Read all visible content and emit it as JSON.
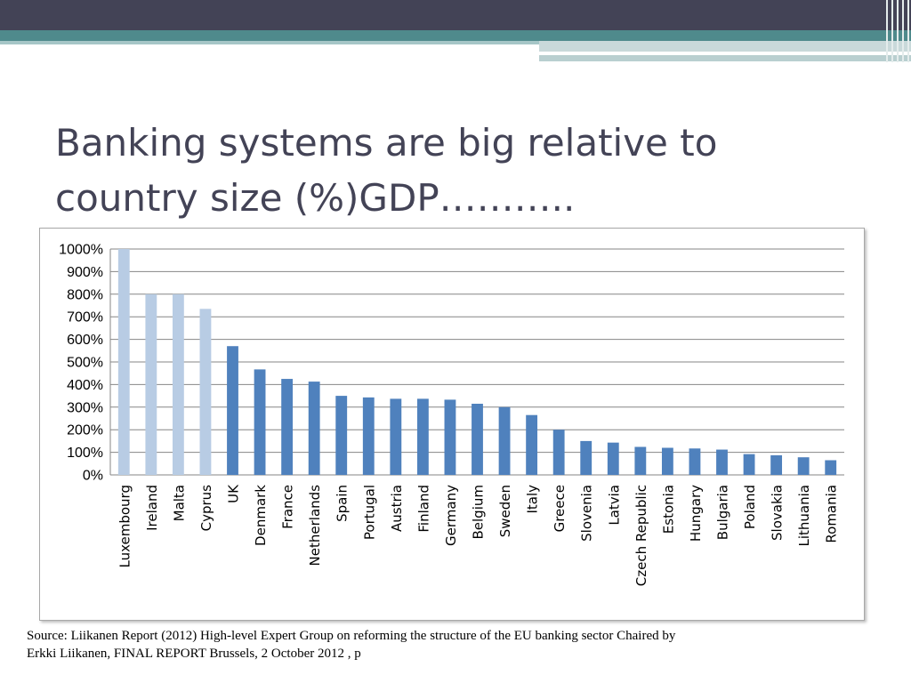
{
  "slide": {
    "title_line1": "Banking systems are big relative to",
    "title_line2": "country size (%)GDP………..",
    "source_line1": "Source: Liikanen Report (2012)  High-level Expert Group on reforming the structure of the EU banking sector Chaired by",
    "source_line2": "Erkki Liikanen, FINAL REPORT Brussels, 2 October 2012 , p"
  },
  "colors": {
    "header_dark": "#434356",
    "header_teal": "#4f8a8c",
    "bar_highlight": "#b8cce4",
    "bar_main": "#4f81bd",
    "grid": "#868686"
  },
  "chart_data": {
    "type": "bar",
    "title": "",
    "xlabel": "",
    "ylabel": "",
    "ylim": [
      0,
      1000
    ],
    "yticks": [
      "0%",
      "100%",
      "200%",
      "300%",
      "400%",
      "500%",
      "600%",
      "700%",
      "800%",
      "900%",
      "1000%"
    ],
    "grid": true,
    "categories": [
      "Luxembourg",
      "Ireland",
      "Malta",
      "Cyprus",
      "UK",
      "Denmark",
      "France",
      "Netherlands",
      "Spain",
      "Portugal",
      "Austria",
      "Finland",
      "Germany",
      "Belgium",
      "Sweden",
      "Italy",
      "Greece",
      "Slovenia",
      "Latvia",
      "Czech Republic",
      "Estonia",
      "Hungary",
      "Bulgaria",
      "Poland",
      "Slovakia",
      "Lithuania",
      "Romania"
    ],
    "values": [
      1000,
      800,
      800,
      735,
      570,
      467,
      425,
      413,
      350,
      343,
      337,
      337,
      333,
      315,
      300,
      265,
      200,
      150,
      143,
      124,
      120,
      117,
      112,
      92,
      87,
      78,
      65
    ],
    "highlighted": [
      "Luxembourg",
      "Ireland",
      "Malta",
      "Cyprus"
    ]
  }
}
